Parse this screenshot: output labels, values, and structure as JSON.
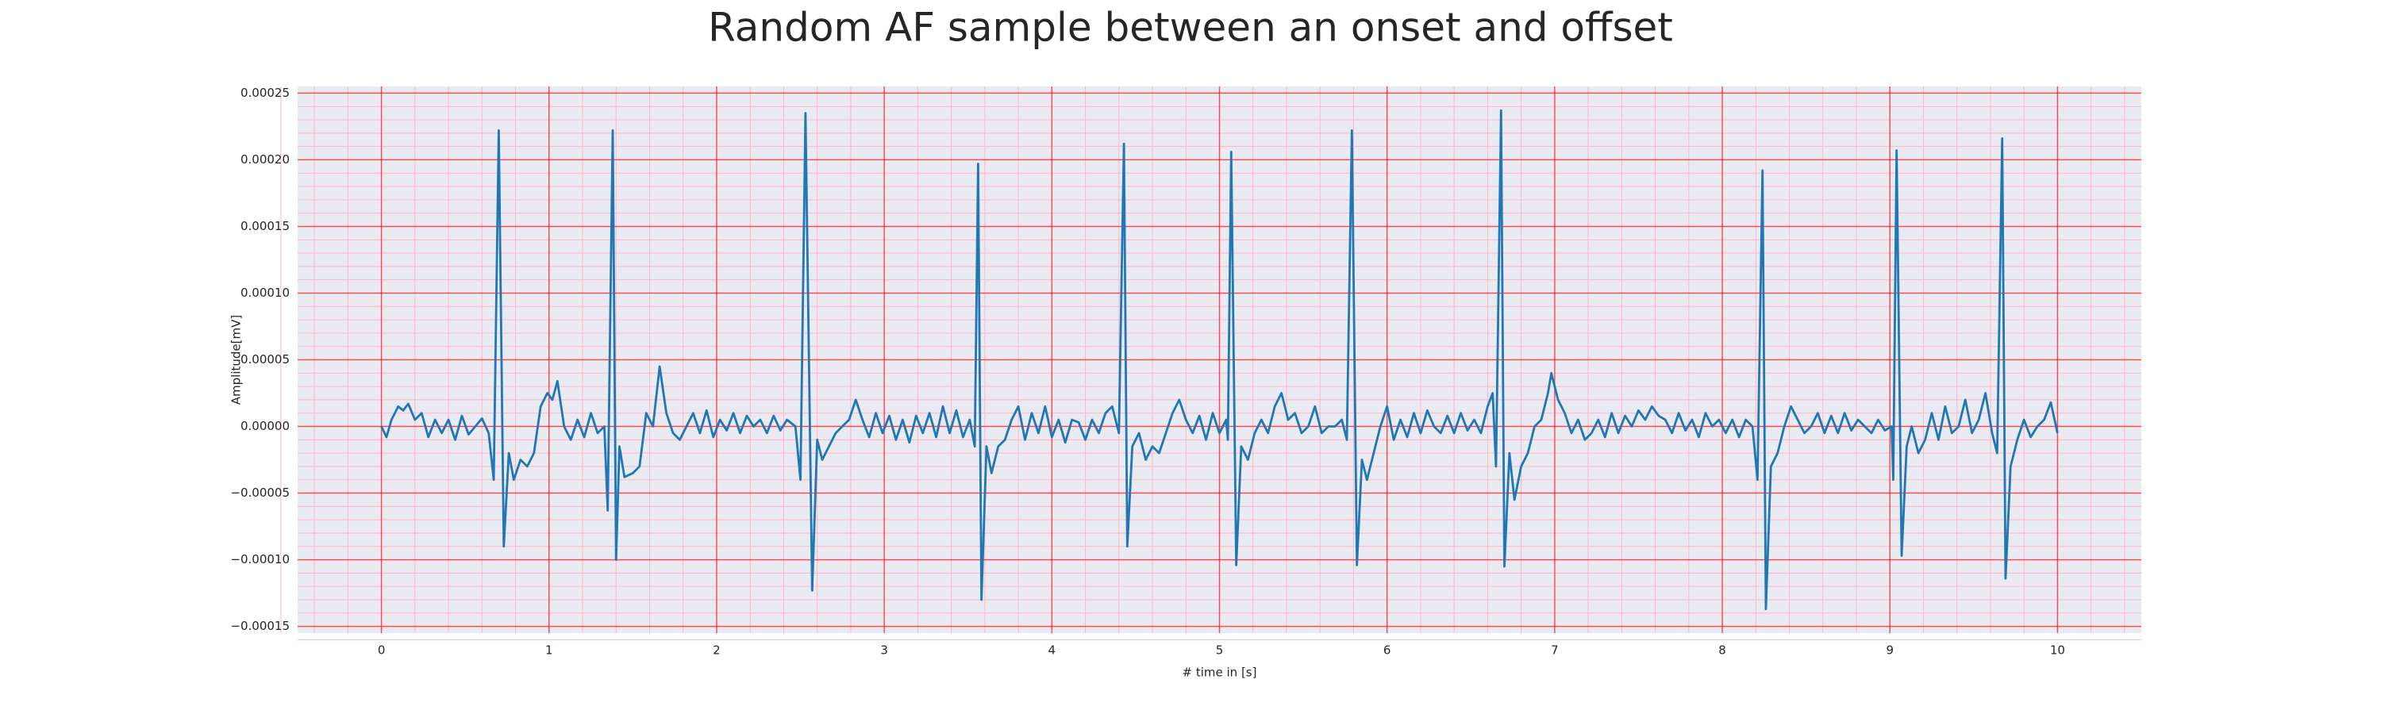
{
  "chart_data": {
    "type": "line",
    "title": "Random AF sample between an onset and offset",
    "x_label": "# time in [s]",
    "y_label": "Amplitude[mV]",
    "background": "#eaeaf2",
    "grid": true,
    "grid_color": "#ff0000",
    "minor_grid": true,
    "minor_grid_color": "#ffb6c1",
    "minor_divisions": 5,
    "xlim": [
      -0.5,
      10.5
    ],
    "xticks": [
      0,
      1,
      2,
      3,
      4,
      5,
      6,
      7,
      8,
      9,
      10
    ],
    "ylim": [
      -0.000155,
      0.000255
    ],
    "yticks": [
      {
        "value": -0.00015,
        "label": "−0.00015"
      },
      {
        "value": -0.0001,
        "label": "−0.00010"
      },
      {
        "value": -5e-05,
        "label": "−0.00005"
      },
      {
        "value": 0,
        "label": "0.00000"
      },
      5e-05,
      {
        "value": 0.0001,
        "label": "0.00010"
      },
      0.00015,
      {
        "value": 0.0002,
        "label": "0.00020"
      },
      0.00025
    ],
    "x": [
      0,
      0.03,
      0.06,
      0.1,
      0.13,
      0.16,
      0.2,
      0.24,
      0.28,
      0.32,
      0.36,
      0.4,
      0.44,
      0.48,
      0.52,
      0.56,
      0.6,
      0.64,
      0.67,
      0.7,
      0.73,
      0.76,
      0.79,
      0.83,
      0.87,
      0.91,
      0.95,
      0.99,
      1.02,
      1.05,
      1.09,
      1.13,
      1.17,
      1.21,
      1.25,
      1.29,
      1.33,
      1.35,
      1.38,
      1.4,
      1.42,
      1.45,
      1.5,
      1.54,
      1.58,
      1.62,
      1.66,
      1.7,
      1.74,
      1.78,
      1.82,
      1.86,
      1.9,
      1.94,
      1.98,
      2.02,
      2.06,
      2.1,
      2.14,
      2.18,
      2.22,
      2.26,
      2.3,
      2.34,
      2.38,
      2.42,
      2.47,
      2.5,
      2.53,
      2.57,
      2.6,
      2.63,
      2.67,
      2.71,
      2.75,
      2.79,
      2.83,
      2.87,
      2.91,
      2.95,
      2.99,
      3.03,
      3.07,
      3.11,
      3.15,
      3.19,
      3.23,
      3.27,
      3.31,
      3.35,
      3.39,
      3.43,
      3.47,
      3.51,
      3.54,
      3.56,
      3.58,
      3.61,
      3.64,
      3.68,
      3.72,
      3.76,
      3.8,
      3.84,
      3.88,
      3.92,
      3.96,
      4.0,
      4.04,
      4.08,
      4.12,
      4.16,
      4.2,
      4.24,
      4.28,
      4.32,
      4.36,
      4.4,
      4.43,
      4.45,
      4.48,
      4.52,
      4.56,
      4.6,
      4.64,
      4.68,
      4.72,
      4.76,
      4.8,
      4.84,
      4.88,
      4.92,
      4.96,
      5.0,
      5.04,
      5.05,
      5.07,
      5.1,
      5.13,
      5.17,
      5.21,
      5.25,
      5.29,
      5.33,
      5.37,
      5.41,
      5.45,
      5.49,
      5.53,
      5.57,
      5.61,
      5.65,
      5.69,
      5.73,
      5.76,
      5.79,
      5.82,
      5.85,
      5.88,
      5.92,
      5.96,
      6.0,
      6.04,
      6.08,
      6.12,
      6.16,
      6.2,
      6.24,
      6.28,
      6.32,
      6.36,
      6.4,
      6.44,
      6.48,
      6.52,
      6.56,
      6.6,
      6.63,
      6.65,
      6.68,
      6.7,
      6.73,
      6.76,
      6.8,
      6.84,
      6.88,
      6.92,
      6.96,
      6.98,
      7.02,
      7.06,
      7.1,
      7.14,
      7.18,
      7.22,
      7.26,
      7.3,
      7.34,
      7.38,
      7.42,
      7.46,
      7.5,
      7.54,
      7.58,
      7.62,
      7.66,
      7.7,
      7.74,
      7.78,
      7.82,
      7.86,
      7.9,
      7.94,
      7.98,
      8.02,
      8.06,
      8.1,
      8.14,
      8.18,
      8.21,
      8.24,
      8.26,
      8.29,
      8.33,
      8.37,
      8.41,
      8.45,
      8.49,
      8.53,
      8.57,
      8.61,
      8.65,
      8.69,
      8.73,
      8.77,
      8.81,
      8.85,
      8.89,
      8.93,
      8.97,
      9.01,
      9.02,
      9.04,
      9.07,
      9.1,
      9.13,
      9.17,
      9.21,
      9.25,
      9.29,
      9.33,
      9.37,
      9.41,
      9.45,
      9.49,
      9.53,
      9.57,
      9.61,
      9.64,
      9.67,
      9.69,
      9.72,
      9.76,
      9.8,
      9.84,
      9.88,
      9.92,
      9.96,
      10.0
    ],
    "series": [
      {
        "color": "#1f77b4",
        "values": [
          0,
          -8e-06,
          5e-06,
          1.5e-05,
          1.2e-05,
          1.7e-05,
          5e-06,
          1e-05,
          -8e-06,
          5e-06,
          -5e-06,
          5e-06,
          -1e-05,
          8e-06,
          -6e-06,
          0,
          6e-06,
          -5e-06,
          -4e-05,
          0.000222,
          -9e-05,
          -2e-05,
          -4e-05,
          -2.5e-05,
          -3e-05,
          -2e-05,
          1.5e-05,
          2.5e-05,
          2e-05,
          3.4e-05,
          0,
          -1e-05,
          5e-06,
          -8e-06,
          1e-05,
          -5e-06,
          0,
          -6.3e-05,
          0.000222,
          -0.0001,
          -1.5e-05,
          -3.8e-05,
          -3.5e-05,
          -3e-05,
          1e-05,
          0,
          4.5e-05,
          1e-05,
          -5e-06,
          -1e-05,
          0,
          1e-05,
          -5e-06,
          1.2e-05,
          -8e-06,
          5e-06,
          -3e-06,
          1e-05,
          -5e-06,
          8e-06,
          0,
          5e-06,
          -5e-06,
          8e-06,
          -3e-06,
          5e-06,
          0,
          -4e-05,
          0.000235,
          -0.000123,
          -1e-05,
          -2.5e-05,
          -1.5e-05,
          -5e-06,
          0,
          5e-06,
          2e-05,
          5e-06,
          -8e-06,
          1e-05,
          -5e-06,
          8e-06,
          -1e-05,
          5e-06,
          -1.2e-05,
          8e-06,
          -5e-06,
          1e-05,
          -8e-06,
          1.5e-05,
          -5e-06,
          1.2e-05,
          -8e-06,
          5e-06,
          -1.5e-05,
          0.000197,
          -0.00013,
          -1.5e-05,
          -3.5e-05,
          -1.5e-05,
          -1e-05,
          5e-06,
          1.5e-05,
          -1e-05,
          1e-05,
          -5e-06,
          1.5e-05,
          -8e-06,
          5e-06,
          -1.2e-05,
          5e-06,
          3e-06,
          -1e-05,
          5e-06,
          -5e-06,
          1e-05,
          1.5e-05,
          -5e-06,
          0.000212,
          -9e-05,
          -1.5e-05,
          -5e-06,
          -2.5e-05,
          -1.5e-05,
          -2e-05,
          -5e-06,
          1e-05,
          2e-05,
          5e-06,
          -5e-06,
          8e-06,
          -1e-05,
          1e-05,
          -5e-06,
          5e-06,
          -1e-05,
          0.000206,
          -0.000104,
          -1.5e-05,
          -2.5e-05,
          -5e-06,
          5e-06,
          -5e-06,
          1.5e-05,
          2.5e-05,
          5e-06,
          1e-05,
          -5e-06,
          0,
          1.5e-05,
          -5e-06,
          0,
          0,
          5e-06,
          -1e-05,
          0.000222,
          -0.000104,
          -2.5e-05,
          -4e-05,
          -2e-05,
          0,
          1.5e-05,
          -1e-05,
          5e-06,
          -8e-06,
          1e-05,
          -5e-06,
          1.2e-05,
          0,
          -5e-06,
          8e-06,
          -5e-06,
          1e-05,
          -3e-06,
          5e-06,
          -5e-06,
          1.5e-05,
          2.5e-05,
          -3e-05,
          0.000237,
          -0.000105,
          -2e-05,
          -5.5e-05,
          -3e-05,
          -2e-05,
          0,
          5e-06,
          2.5e-05,
          4e-05,
          2e-05,
          1e-05,
          -5e-06,
          5e-06,
          -1e-05,
          -5e-06,
          5e-06,
          -8e-06,
          1e-05,
          -5e-06,
          8e-06,
          0,
          1.2e-05,
          5e-06,
          1.5e-05,
          8e-06,
          5e-06,
          -5e-06,
          1e-05,
          -3e-06,
          5e-06,
          -8e-06,
          1e-05,
          0,
          5e-06,
          -5e-06,
          5e-06,
          -8e-06,
          5e-06,
          0,
          -4e-05,
          0.000192,
          -0.000137,
          -3e-05,
          -2e-05,
          0,
          1.5e-05,
          5e-06,
          -5e-06,
          0,
          1e-05,
          -5e-06,
          8e-06,
          -5e-06,
          1e-05,
          -3e-06,
          5e-06,
          0,
          -5e-06,
          5e-06,
          -3e-06,
          0,
          -4e-05,
          0.000207,
          -9.7e-05,
          -1.5e-05,
          0,
          -2e-05,
          -1e-05,
          1e-05,
          -1e-05,
          1.5e-05,
          -5e-06,
          0,
          2e-05,
          -5e-06,
          5e-06,
          2.5e-05,
          -5e-06,
          -2e-05,
          0.000216,
          -0.000114,
          -3e-05,
          -1e-05,
          5e-06,
          -8e-06,
          0,
          5e-06,
          1.8e-05,
          -5e-06
        ]
      }
    ]
  }
}
